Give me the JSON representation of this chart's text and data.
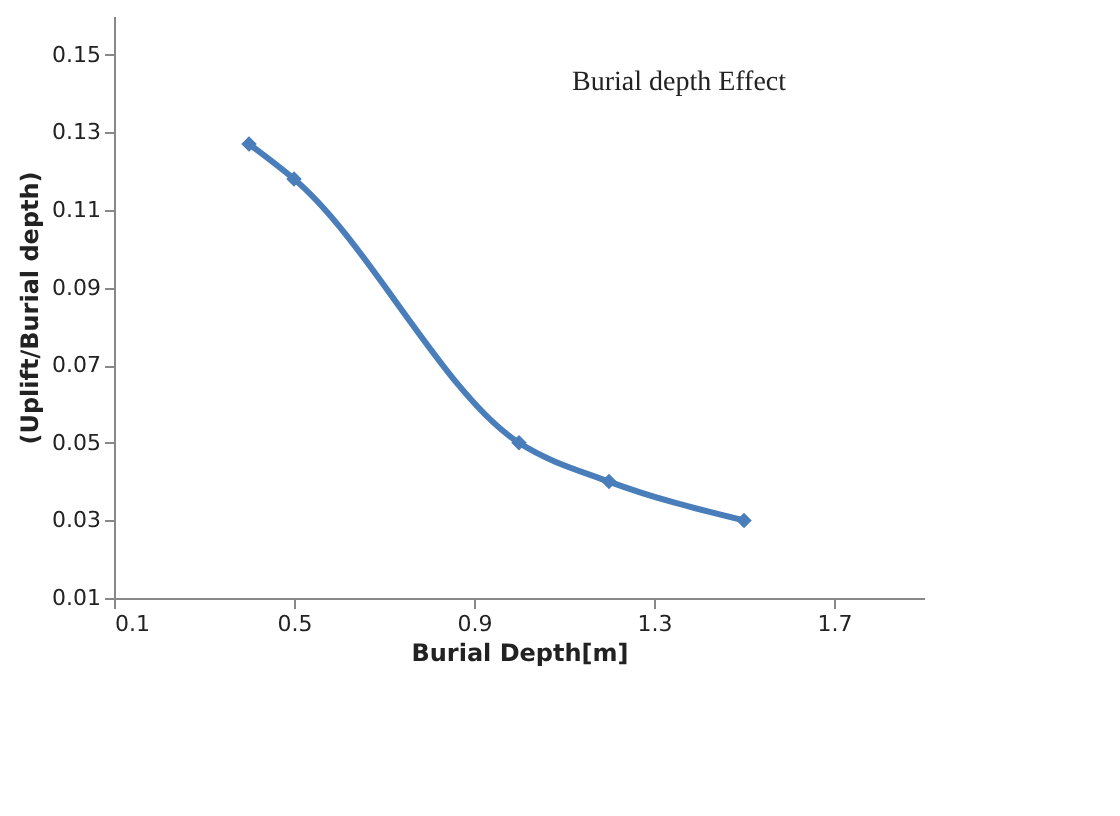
{
  "chart_data": {
    "type": "line",
    "title": "Burial depth Effect",
    "xlabel": "Burial Depth[m]",
    "ylabel": "(Uplift/Burial depth)",
    "x": [
      0.4,
      0.5,
      1.0,
      1.2,
      1.5
    ],
    "series": [
      {
        "color": "#4a7ebb",
        "values": [
          0.127,
          0.118,
          0.05,
          0.04,
          0.03
        ]
      }
    ],
    "xlim": [
      0.1,
      1.9
    ],
    "xticks": [
      0.1,
      0.5,
      0.9,
      1.3,
      1.7
    ],
    "ylim": [
      0.01,
      0.16
    ],
    "yticks": [
      0.01,
      0.03,
      0.05,
      0.07,
      0.09,
      0.11,
      0.13,
      0.15
    ],
    "grid": false,
    "marker": "diamond",
    "line_style": "solid"
  }
}
